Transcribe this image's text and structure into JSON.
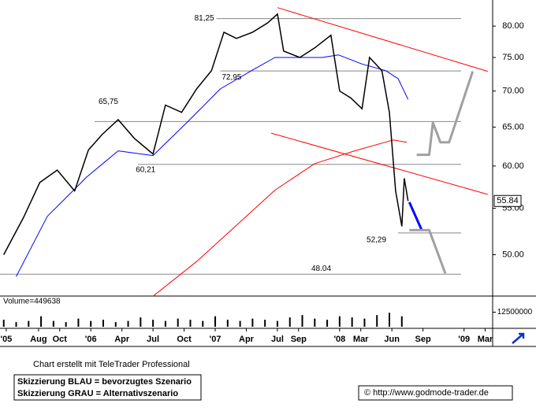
{
  "chart_data": [
    {
      "type": "line",
      "log_scale": true,
      "xlim": [
        2005.27,
        2009.23
      ],
      "xticks": [
        {
          "value": 2005.32,
          "label": "'05"
        },
        {
          "value": 2005.58,
          "label": "Aug"
        },
        {
          "value": 2005.75,
          "label": "Oct"
        },
        {
          "value": 2006.0,
          "label": "'06"
        },
        {
          "value": 2006.25,
          "label": "Apr"
        },
        {
          "value": 2006.5,
          "label": "Jul"
        },
        {
          "value": 2006.75,
          "label": "Oct"
        },
        {
          "value": 2007.0,
          "label": "'07"
        },
        {
          "value": 2007.25,
          "label": "Apr"
        },
        {
          "value": 2007.5,
          "label": "Jul"
        },
        {
          "value": 2007.67,
          "label": "Sep"
        },
        {
          "value": 2008.0,
          "label": "'08"
        },
        {
          "value": 2008.17,
          "label": "Mar"
        },
        {
          "value": 2008.42,
          "label": "Jun"
        },
        {
          "value": 2008.67,
          "label": "Sep"
        },
        {
          "value": 2009.0,
          "label": "'09"
        },
        {
          "value": 2009.17,
          "label": "Mar"
        }
      ],
      "ylim": [
        46,
        84
      ],
      "yticks": [
        {
          "value": 50,
          "label": "50.00"
        },
        {
          "value": 55,
          "label": "55.00"
        },
        {
          "value": 60,
          "label": "60.00"
        },
        {
          "value": 65,
          "label": "65.00"
        },
        {
          "value": 70,
          "label": "70.00"
        },
        {
          "value": 75,
          "label": "75.00"
        },
        {
          "value": 80,
          "label": "80.00"
        }
      ],
      "x": [
        2005.3,
        2005.46,
        2005.59,
        2005.73,
        2005.87,
        2005.98,
        2006.09,
        2006.22,
        2006.35,
        2006.5,
        2006.6,
        2006.73,
        2006.85,
        2006.97,
        2007.07,
        2007.17,
        2007.3,
        2007.42,
        2007.5,
        2007.55,
        2007.68,
        2007.8,
        2007.93,
        2008.0,
        2008.09,
        2008.18,
        2008.24,
        2008.34,
        2008.4,
        2008.45,
        2008.5,
        2008.52,
        2008.55
      ],
      "series": [
        {
          "color": "#000000",
          "values": [
            50,
            54,
            58,
            59.5,
            57,
            62,
            64,
            66,
            63.5,
            61.5,
            68,
            67,
            70.3,
            73,
            79,
            78,
            79,
            80.5,
            82,
            76,
            75,
            76.5,
            78.5,
            70,
            69,
            67.5,
            75,
            73,
            67,
            57,
            53,
            58.5,
            55.84
          ]
        }
      ],
      "moving_averages": [
        {
          "color": "#0000ff",
          "x": [
            2005.4,
            2005.65,
            2005.97,
            2006.22,
            2006.5,
            2006.79,
            2007.04,
            2007.3,
            2007.48,
            2007.67,
            2007.86,
            2007.99,
            2008.18,
            2008.37,
            2008.47,
            2008.55
          ],
          "values": [
            47.8,
            54.1,
            58.7,
            61.9,
            61.3,
            65.9,
            70.3,
            73.1,
            75,
            75,
            75,
            75.4,
            74,
            73,
            71.8,
            68.8
          ]
        },
        {
          "color": "#ff0000",
          "x": [
            2006.5,
            2006.85,
            2007.17,
            2007.48,
            2007.8,
            2008.12,
            2008.43,
            2008.54
          ],
          "values": [
            45.9,
            49.3,
            53.1,
            57.1,
            60.3,
            61.9,
            63.3,
            63
          ]
        }
      ],
      "levels": [
        {
          "value": 81.25,
          "label": "81,25",
          "start": 2007.01
        },
        {
          "value": 72.95,
          "label": "72,95",
          "start": 2007.04
        },
        {
          "value": 65.75,
          "label": "65,75",
          "start": 2006.03
        },
        {
          "value": 60.21,
          "label": "60,21",
          "start": 2006.38
        },
        {
          "value": 52.29,
          "label": "52,29",
          "start": 2008.47
        },
        {
          "value": 48.04,
          "label": "48.04",
          "start": 2005.27
        }
      ],
      "trendlines": [
        {
          "color": "#ff0000",
          "x": [
            2007.5,
            2009.19
          ],
          "values": [
            83.1,
            72.9
          ]
        },
        {
          "color": "#ff0000",
          "x": [
            2007.45,
            2009.19
          ],
          "values": [
            64.2,
            56.6
          ]
        }
      ],
      "scenarios": [
        {
          "color": "#0000ff",
          "x": [
            2008.56,
            2008.66
          ],
          "values": [
            55.7,
            52.6
          ]
        },
        {
          "color": "#a0a0a0",
          "x": [
            2008.56,
            2008.72,
            2008.85
          ],
          "values": [
            52.6,
            52.6,
            48.1
          ]
        },
        {
          "color": "#a0a0a0",
          "x": [
            2008.62,
            2008.72,
            2008.75,
            2008.81,
            2008.88,
            2009.07
          ],
          "values": [
            61.4,
            61.4,
            65.6,
            63,
            63,
            72.9
          ]
        }
      ],
      "last_value": 55.84
    },
    {
      "type": "bar",
      "label": "Volume=449638",
      "color": "#000000",
      "ylim": [
        0,
        25000000
      ],
      "yticks": [
        12500000
      ],
      "x": [
        2005.3,
        2005.4,
        2005.5,
        2005.6,
        2005.7,
        2005.8,
        2005.9,
        2006.0,
        2006.1,
        2006.2,
        2006.3,
        2006.4,
        2006.5,
        2006.6,
        2006.7,
        2006.8,
        2006.9,
        2007.0,
        2007.1,
        2007.2,
        2007.3,
        2007.4,
        2007.5,
        2007.6,
        2007.7,
        2007.8,
        2007.9,
        2008.0,
        2008.1,
        2008.2,
        2008.3,
        2008.4,
        2008.5
      ],
      "values": [
        6000000,
        4000000,
        5000000,
        9000000,
        5000000,
        4000000,
        7000000,
        5000000,
        6000000,
        4000000,
        5000000,
        8000000,
        6000000,
        5000000,
        7000000,
        6000000,
        5000000,
        9000000,
        6000000,
        5000000,
        7000000,
        6000000,
        5000000,
        8000000,
        10000000,
        7000000,
        6000000,
        9000000,
        8000000,
        7000000,
        10000000,
        12000000,
        9000000
      ]
    }
  ],
  "footer": {
    "credit": "Chart erstellt mit TeleTrader Professional",
    "legend": [
      "Skizzierung BLAU = bevorzugtes Szenario",
      "Skizzierung GRAU = Alternativszenario"
    ],
    "copyright": "© http://www.godmode-trader.de"
  }
}
